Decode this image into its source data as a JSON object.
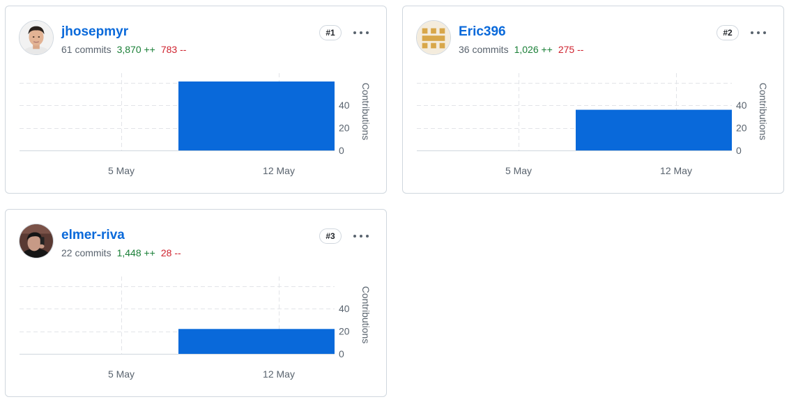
{
  "icons": {
    "more": "kebab-horizontal-icon",
    "avatar": "avatar-image"
  },
  "colors": {
    "bar": "#0969da",
    "link": "#0969da",
    "additions": "#1a7f37",
    "deletions": "#cf222e"
  },
  "contributors": [
    {
      "username": "jhosepmyr",
      "commits": "61 commits",
      "additions": "3,870 ++",
      "deletions": "783 --",
      "rank": "#1",
      "chart_data": {
        "type": "bar",
        "ylabel": "Contributions",
        "x_ticks": [
          "5 May",
          "12 May"
        ],
        "y_ticks": [
          "0",
          "20",
          "40"
        ],
        "ylim": [
          0,
          61
        ],
        "bars": [
          {
            "from": "8 May",
            "to": "14 May",
            "value": 61
          }
        ]
      }
    },
    {
      "username": "Eric396",
      "commits": "36 commits",
      "additions": "1,026 ++",
      "deletions": "275 --",
      "rank": "#2",
      "chart_data": {
        "type": "bar",
        "ylabel": "Contributions",
        "x_ticks": [
          "5 May",
          "12 May"
        ],
        "y_ticks": [
          "0",
          "20",
          "40"
        ],
        "ylim": [
          0,
          61
        ],
        "bars": [
          {
            "from": "8 May",
            "to": "14 May",
            "value": 36
          }
        ]
      }
    },
    {
      "username": "elmer-riva",
      "commits": "22 commits",
      "additions": "1,448 ++",
      "deletions": "28 --",
      "rank": "#3",
      "chart_data": {
        "type": "bar",
        "ylabel": "Contributions",
        "x_ticks": [
          "5 May",
          "12 May"
        ],
        "y_ticks": [
          "0",
          "20",
          "40"
        ],
        "ylim": [
          0,
          61
        ],
        "bars": [
          {
            "from": "8 May",
            "to": "14 May",
            "value": 22
          }
        ]
      }
    }
  ]
}
